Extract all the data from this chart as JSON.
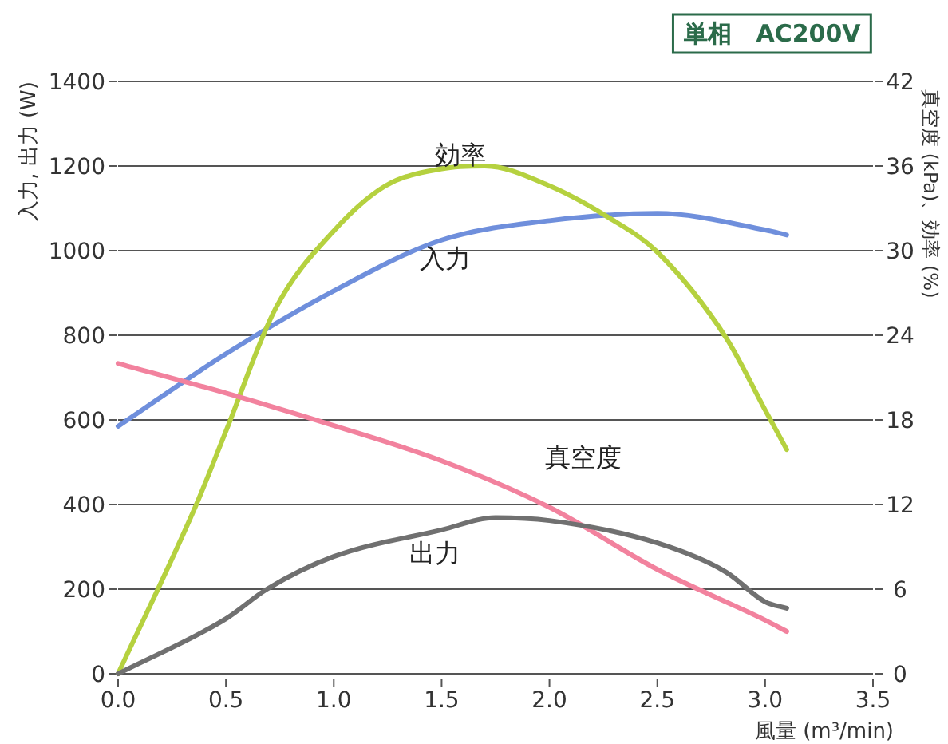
{
  "chart_data": {
    "type": "line",
    "title": "単相　AC200V",
    "xlabel": "風量 (m³/min)",
    "ylabel": "入力, 出力 (W)",
    "y2label": "真空度 (kPa)、効率 (%)",
    "xlim": [
      0,
      3.5
    ],
    "xticks": [
      {
        "value": 0,
        "label": "0.0"
      },
      0.5,
      {
        "value": 1,
        "label": "1.0"
      },
      1.5,
      {
        "value": 2,
        "label": "2.0"
      },
      2.5,
      {
        "value": 3,
        "label": "3.0"
      },
      3.5
    ],
    "ylim": [
      0,
      1400
    ],
    "yticks": [
      0,
      200,
      400,
      600,
      800,
      1000,
      1200,
      1400
    ],
    "y2lim": [
      0,
      42
    ],
    "y2ticks": [
      0,
      6,
      12,
      18,
      24,
      30,
      36,
      42
    ],
    "grid": "y",
    "legend": false,
    "marker": "none",
    "line_style": "solid",
    "series": [
      {
        "name": "入力",
        "color": "#6f8fdc",
        "x": [
          0,
          0.5,
          1.0,
          1.5,
          2.0,
          2.5,
          3.0,
          3.1
        ],
        "values": [
          585,
          756,
          905,
          1025,
          1071,
          1088,
          1049,
          1037
        ]
      },
      {
        "name": "効率",
        "color": "#b5d13f",
        "axis": "y2",
        "x": [
          0,
          0.36,
          0.5,
          0.73,
          1.0,
          1.24,
          1.5,
          1.7,
          2.0,
          2.28,
          2.5,
          2.82,
          3.0,
          3.1
        ],
        "values": [
          0,
          11.9,
          17.2,
          25.9,
          31.4,
          34.6,
          35.8,
          36,
          34.6,
          32.3,
          29.9,
          23.8,
          18.7,
          15.9
        ]
      },
      {
        "name": "真空度",
        "color": "#f2829e",
        "axis": "y2",
        "x": [
          0,
          0.5,
          1.0,
          1.5,
          2.0,
          2.5,
          3.0,
          3.1
        ],
        "values": [
          22,
          19.9,
          17.6,
          15.1,
          11.8,
          7.4,
          3.8,
          3
        ]
      },
      {
        "name": "出力",
        "color": "#707070",
        "x": [
          0,
          0.5,
          0.69,
          1.0,
          1.5,
          1.75,
          2.0,
          2.5,
          2.82,
          3.0,
          3.1
        ],
        "values": [
          0,
          130,
          200,
          277,
          340,
          369,
          362,
          309,
          240,
          170,
          155
        ]
      }
    ]
  }
}
